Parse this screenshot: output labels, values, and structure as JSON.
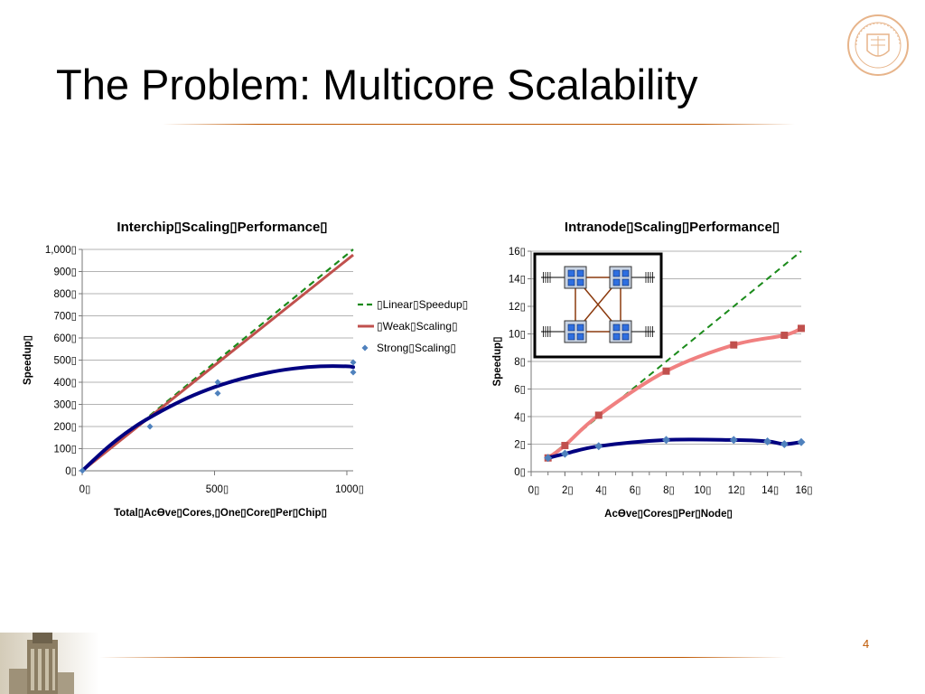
{
  "slide": {
    "title": "The Problem: Multicore Scalability",
    "page_number": "4"
  },
  "chart_data": [
    {
      "type": "line",
      "title": "Interchip▯Scaling▯Performance▯",
      "xlabel": "Total▯AcƟve▯Cores,▯One▯Core▯Per▯Chip▯",
      "ylabel": "Speedup▯",
      "xlim": [
        0,
        1024
      ],
      "ylim": [
        0,
        1000
      ],
      "x_ticks": [
        0,
        500,
        1000
      ],
      "x_tick_labels": [
        "0▯",
        "500▯",
        "1000▯"
      ],
      "y_ticks": [
        0,
        100,
        200,
        300,
        400,
        500,
        600,
        700,
        800,
        900,
        1000
      ],
      "y_tick_labels": [
        "0▯",
        "100▯",
        "200▯",
        "300▯",
        "400▯",
        "500▯",
        "600▯",
        "700▯",
        "800▯",
        "900▯",
        "1,000▯"
      ],
      "grid": true,
      "legend": "right",
      "series": [
        {
          "name": "▯Linear▯Speedup▯",
          "style": "dashed",
          "color": "#1a8a1a",
          "x": [
            1,
            1024
          ],
          "y": [
            1,
            1024
          ]
        },
        {
          "name": "▯Weak▯Scaling▯",
          "style": "solid",
          "color": "#c0504d",
          "x": [
            1,
            1024
          ],
          "y": [
            1,
            975
          ]
        },
        {
          "name": "Strong▯Scaling▯",
          "style": "markers",
          "color": "#4f81bd",
          "x": [
            1,
            256,
            512,
            512,
            1024,
            1024
          ],
          "y": [
            1,
            200,
            400,
            350,
            490,
            445
          ]
        },
        {
          "name": "",
          "style": "trend",
          "color": "#000080",
          "x": [
            1,
            100,
            200,
            300,
            400,
            500,
            600,
            700,
            800,
            900,
            1000,
            1024
          ],
          "y": [
            1,
            110,
            200,
            270,
            330,
            378,
            415,
            443,
            462,
            472,
            472,
            468
          ]
        }
      ]
    },
    {
      "type": "line",
      "title": "Intranode▯Scaling▯Performance▯",
      "xlabel": "AcƟve▯Cores▯Per▯Node▯",
      "ylabel": "Speedup▯",
      "xlim": [
        0,
        16
      ],
      "ylim": [
        0,
        16
      ],
      "x_ticks": [
        0,
        2,
        4,
        6,
        8,
        10,
        12,
        14,
        16
      ],
      "x_tick_labels": [
        "0▯",
        "2▯",
        "4▯",
        "6▯",
        "8▯",
        "10▯",
        "12▯",
        "14▯",
        "16▯"
      ],
      "y_ticks": [
        0,
        2,
        4,
        6,
        8,
        10,
        12,
        14,
        16
      ],
      "y_tick_labels": [
        "0▯",
        "2▯",
        "4▯",
        "6▯",
        "8▯",
        "10▯",
        "12▯",
        "14▯",
        "16▯"
      ],
      "grid": true,
      "inset": "node diagram with four quad-core chips and crossbar links",
      "series": [
        {
          "name": "",
          "style": "dashed",
          "color": "#1a8a1a",
          "x": [
            1,
            16
          ],
          "y": [
            1,
            16
          ]
        },
        {
          "name": "",
          "style": "curve-squares",
          "color": "#f08080",
          "marker_color": "#c0504d",
          "x": [
            1,
            2,
            4,
            8,
            12,
            15,
            16
          ],
          "y": [
            1,
            1.9,
            4.1,
            7.3,
            9.2,
            9.9,
            10.4
          ]
        },
        {
          "name": "",
          "style": "curve-diamonds",
          "color": "#000080",
          "marker_color": "#4f81bd",
          "x": [
            1,
            2,
            4,
            8,
            12,
            14,
            15,
            16
          ],
          "y": [
            1.0,
            1.3,
            1.85,
            2.3,
            2.3,
            2.2,
            2.0,
            2.15
          ]
        }
      ]
    }
  ]
}
